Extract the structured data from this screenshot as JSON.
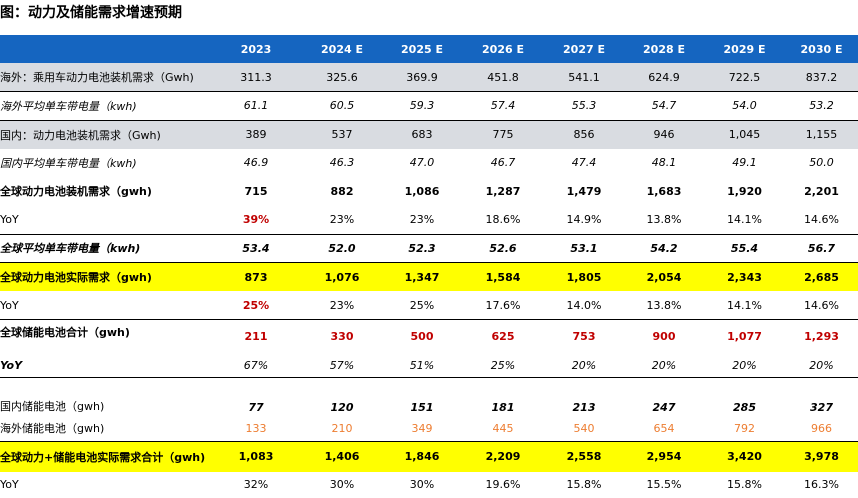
{
  "title": "图：动力及储能需求增速预期",
  "columns": [
    "",
    "2023",
    "2024 E",
    "2025 E",
    "2026 E",
    "2027 E",
    "2028 E",
    "2029 E",
    "2030 E"
  ],
  "rows": [
    {
      "label": "海外：乘用车动力电池装机需求（Gwh)",
      "values": [
        "311.3",
        "325.6",
        "369.9",
        "451.8",
        "541.1",
        "624.9",
        "722.5",
        "837.2"
      ]
    },
    {
      "label": "海外平均单车带电量（kwh)",
      "values": [
        "61.1",
        "60.5",
        "59.3",
        "57.4",
        "55.3",
        "54.7",
        "54.0",
        "53.2"
      ]
    },
    {
      "label": "国内：动力电池装机需求（Gwh)",
      "values": [
        "389",
        "537",
        "683",
        "775",
        "856",
        "946",
        "1,045",
        "1,155"
      ]
    },
    {
      "label": "国内平均单车带电量（kwh)",
      "values": [
        "46.9",
        "46.3",
        "47.0",
        "46.7",
        "47.4",
        "48.1",
        "49.1",
        "50.0"
      ]
    },
    {
      "label": "全球动力电池装机需求（gwh)",
      "values": [
        "715",
        "882",
        "1,086",
        "1,287",
        "1,479",
        "1,683",
        "1,920",
        "2,201"
      ]
    },
    {
      "label": "YoY",
      "values": [
        "39%",
        "23%",
        "23%",
        "18.6%",
        "14.9%",
        "13.8%",
        "14.1%",
        "14.6%"
      ]
    },
    {
      "label": "全球平均单车带电量（kwh)",
      "values": [
        "53.4",
        "52.0",
        "52.3",
        "52.6",
        "53.1",
        "54.2",
        "55.4",
        "56.7"
      ]
    },
    {
      "label": "全球动力电池实际需求（gwh)",
      "values": [
        "873",
        "1,076",
        "1,347",
        "1,584",
        "1,805",
        "2,054",
        "2,343",
        "2,685"
      ]
    },
    {
      "label": "YoY",
      "values": [
        "25%",
        "23%",
        "25%",
        "17.6%",
        "14.0%",
        "13.8%",
        "14.1%",
        "14.6%"
      ]
    },
    {
      "label": "全球储能电池合计（gwh)",
      "values": [
        "211",
        "330",
        "500",
        "625",
        "753",
        "900",
        "1,077",
        "1,293"
      ]
    },
    {
      "label": "YoY",
      "values": [
        "67%",
        "57%",
        "51%",
        "25%",
        "20%",
        "20%",
        "20%",
        "20%"
      ]
    },
    {
      "label": "国内储能电池（gwh)",
      "values": [
        "77",
        "120",
        "151",
        "181",
        "213",
        "247",
        "285",
        "327"
      ]
    },
    {
      "label": "海外储能电池（gwh)",
      "values": [
        "133",
        "210",
        "349",
        "445",
        "540",
        "654",
        "792",
        "966"
      ]
    },
    {
      "label": "全球动力+储能电池实际需求合计（gwh)",
      "values": [
        "1,083",
        "1,406",
        "1,846",
        "2,209",
        "2,558",
        "2,954",
        "3,420",
        "3,978"
      ]
    },
    {
      "label": "YoY",
      "values": [
        "32%",
        "30%",
        "30%",
        "19.6%",
        "15.8%",
        "15.5%",
        "15.8%",
        "16.3%"
      ]
    }
  ],
  "colors": {
    "header_bg": "#1565c0",
    "highlight": "#ffff00",
    "shade": "#d9dce1",
    "red": "#c00000",
    "orange": "#ed7d31"
  }
}
